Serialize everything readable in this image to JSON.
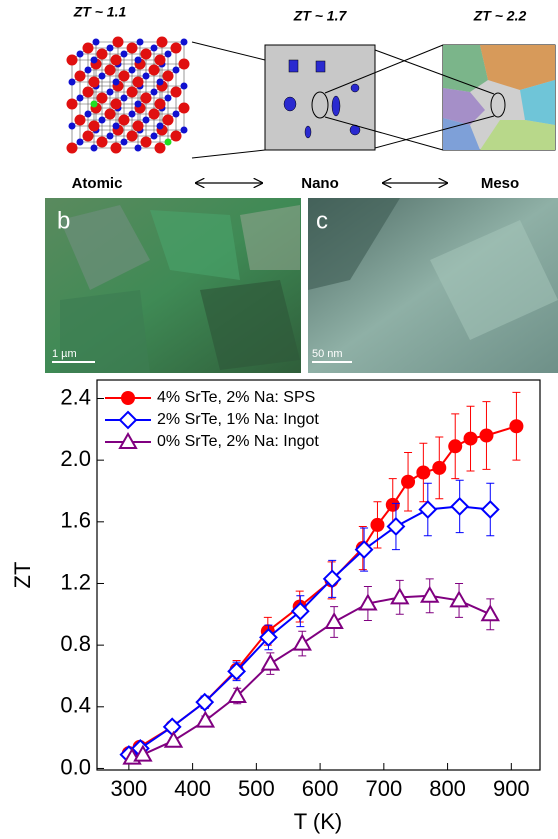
{
  "figure": {
    "scales": [
      {
        "zt": "ZT ~ 1.1",
        "label": "Atomic"
      },
      {
        "zt": "ZT ~ 1.7",
        "label": "Nano"
      },
      {
        "zt": "ZT ~ 2.2",
        "label": "Meso"
      }
    ],
    "panels": [
      {
        "letter": "b",
        "scale_bar": "1 µm"
      },
      {
        "letter": "c",
        "scale_bar": "50 nm"
      }
    ]
  },
  "chart_data": {
    "type": "line",
    "x_label": "T (K)",
    "y_label": "ZT",
    "xlim": [
      250,
      945
    ],
    "ylim": [
      -0.01,
      2.52
    ],
    "xticks": [
      300,
      400,
      500,
      600,
      700,
      800,
      900
    ],
    "yticks": [
      {
        "value": 0,
        "label": "0.0"
      },
      0.4,
      0.8,
      1.2,
      1.6,
      {
        "value": 2,
        "label": "2.0"
      },
      2.4
    ],
    "legend": "top-left",
    "series": [
      {
        "name": "4% SrTe, 2% Na: SPS",
        "color": "#ff0000",
        "marker": "filled-circle",
        "x": [
          300,
          317,
          368,
          419,
          469,
          518,
          568,
          618,
          667,
          690,
          714,
          738,
          762,
          787,
          812,
          836,
          861,
          908
        ],
        "values": [
          0.1,
          0.14,
          0.27,
          0.43,
          0.64,
          0.89,
          1.05,
          1.22,
          1.43,
          1.58,
          1.71,
          1.86,
          1.92,
          1.95,
          2.09,
          2.14,
          2.16,
          2.22
        ],
        "errors": [
          0.01,
          0.02,
          0.03,
          0.04,
          0.06,
          0.09,
          0.1,
          0.12,
          0.14,
          0.15,
          0.17,
          0.19,
          0.19,
          0.2,
          0.21,
          0.21,
          0.22,
          0.22
        ]
      },
      {
        "name": "2% SrTe, 1% Na: Ingot",
        "color": "#0000ff",
        "marker": "open-diamond",
        "x": [
          300,
          318,
          368,
          419,
          469,
          519,
          569,
          619,
          669,
          719,
          769,
          819,
          867
        ],
        "values": [
          0.09,
          0.13,
          0.27,
          0.43,
          0.63,
          0.85,
          1.02,
          1.23,
          1.42,
          1.57,
          1.68,
          1.7,
          1.68
        ],
        "errors": [
          0.01,
          0.01,
          0.03,
          0.04,
          0.06,
          0.08,
          0.1,
          0.12,
          0.14,
          0.15,
          0.17,
          0.17,
          0.17
        ]
      },
      {
        "name": "0% SrTe, 2% Na: Ingot",
        "color": "#800080",
        "marker": "open-triangle",
        "x": [
          305,
          322,
          370,
          420,
          470,
          522,
          572,
          622,
          675,
          725,
          772,
          818,
          867
        ],
        "values": [
          0.07,
          0.09,
          0.18,
          0.31,
          0.47,
          0.68,
          0.81,
          0.95,
          1.07,
          1.11,
          1.12,
          1.09,
          1.0
        ],
        "errors": [
          0.01,
          0.01,
          0.02,
          0.03,
          0.05,
          0.07,
          0.08,
          0.1,
          0.11,
          0.11,
          0.11,
          0.11,
          0.1
        ]
      }
    ]
  }
}
